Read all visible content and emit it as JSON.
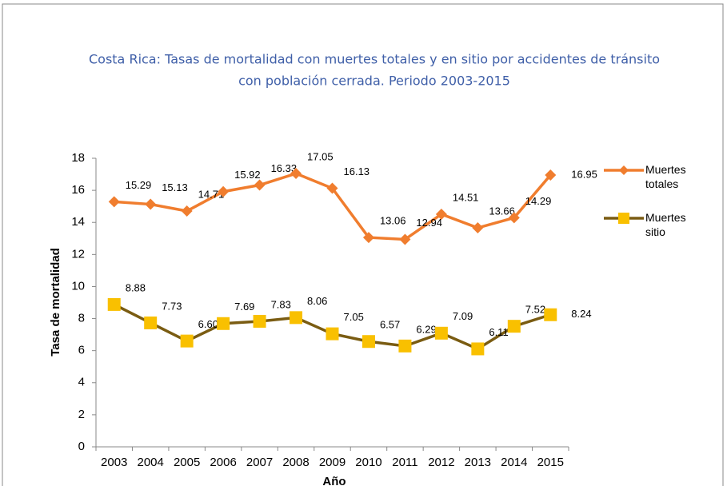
{
  "chart_data": {
    "type": "line",
    "title": [
      "Costa Rica: Tasas de mortalidad con muertes totales  y  en sitio por accidentes de tránsito",
      "con población cerrada. Periodo 2003-2015"
    ],
    "xlabel": "Año",
    "ylabel": "Tasa de mortalidad",
    "categories": [
      "2003",
      "2004",
      "2005",
      "2006",
      "2007",
      "2008",
      "2009",
      "2010",
      "2011",
      "2012",
      "2013",
      "2014",
      "2015"
    ],
    "series": [
      {
        "name": "Muertes totales",
        "color": "#f07d2e",
        "marker": "diamond",
        "values": [
          15.29,
          15.13,
          14.71,
          15.92,
          16.33,
          17.05,
          16.13,
          13.06,
          12.94,
          14.51,
          13.66,
          14.29,
          16.95
        ]
      },
      {
        "name": "Muertes sitio",
        "color": "#7a5c12",
        "marker_color": "#f9c000",
        "marker": "square",
        "values": [
          8.88,
          7.73,
          6.6,
          7.69,
          7.83,
          8.06,
          7.05,
          6.57,
          6.29,
          7.09,
          6.11,
          7.52,
          8.24
        ],
        "value_labels": [
          "8.88",
          "7.73",
          "6.60",
          "7.69",
          "7.83",
          "8.06",
          "7.05",
          "6.57",
          "6.29",
          "7.09",
          "6.11",
          "7.52",
          "8.24"
        ]
      }
    ],
    "ylim": [
      0,
      18
    ],
    "yticks": [
      0,
      2,
      4,
      6,
      8,
      10,
      12,
      14,
      16,
      18
    ],
    "grid": false,
    "legend": "right"
  }
}
